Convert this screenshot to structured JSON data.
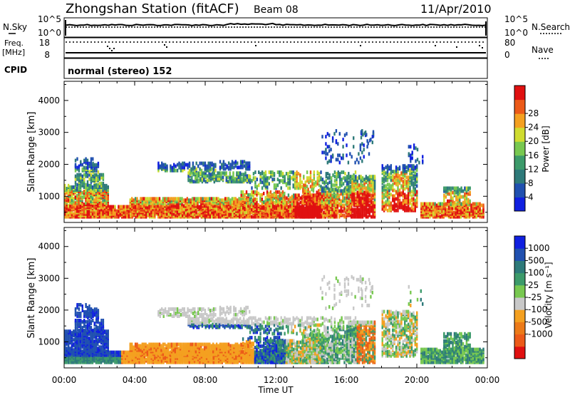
{
  "header": {
    "station": "Zhongshan Station (fitACF)",
    "beam": "Beam 08",
    "date": "11/Apr/2010"
  },
  "ticks": {
    "sky_top": "10^5",
    "sky_bottom": "10^0",
    "freq_top": "18",
    "freq_bottom": "8",
    "nave_top": "80",
    "nave_bottom": "0",
    "noise_right_top": "10^5",
    "noise_right_bottom": "10^0"
  },
  "labels": {
    "nsky": "N.Sky",
    "freq": "Freq.",
    "mhz": "[MHz]",
    "cpid_label": "CPID",
    "nsearch": "N.Search",
    "nave": "Nave",
    "cpid_value": "normal (stereo) 152",
    "slant_range_top": "Slant Range [km]",
    "slant_range_bottom": "Slant Range [km]",
    "power_colorbar": "Power [dB]",
    "velocity_colorbar": "Velocity [m s⁻¹]"
  },
  "colors": {
    "power_scale": [
      "#1020e0",
      "#2050b0",
      "#2e7a7a",
      "#3c9a6a",
      "#78c850",
      "#d0dc30",
      "#f4a020",
      "#ec5a18",
      "#e01010"
    ],
    "velocity_scale": [
      "#1020e0",
      "#2050b0",
      "#2e7a7a",
      "#3c9a6a",
      "#78c850",
      "#c8c8c8",
      "#f4a020",
      "#ec7a18",
      "#ec5a18",
      "#e01010"
    ]
  },
  "chart_data": [
    {
      "type": "line",
      "title": "N.Sky / N.Search",
      "x": [
        "00:00",
        "04:00",
        "08:00",
        "12:00",
        "16:00",
        "20:00",
        "00:00"
      ],
      "series": [
        {
          "name": "N.Sky",
          "values": [
            3000,
            3200,
            3500,
            6000,
            4000,
            3000,
            2500
          ]
        },
        {
          "name": "N.Search",
          "values": [
            2000,
            2200,
            2500,
            3500,
            3000,
            2200,
            2000
          ]
        }
      ],
      "ylim_labels": [
        "10^0",
        "10^5"
      ]
    },
    {
      "type": "line",
      "title": "Freq. / Nave",
      "x": [
        "00:00",
        "04:00",
        "08:00",
        "12:00",
        "16:00",
        "20:00",
        "00:00"
      ],
      "series": [
        {
          "name": "Freq. [MHz]",
          "values": [
            12,
            12,
            12,
            12,
            12,
            12,
            12
          ]
        },
        {
          "name": "Nave",
          "values": [
            76,
            76,
            76,
            76,
            76,
            76,
            76
          ]
        }
      ],
      "ylim_left": [
        8,
        18
      ],
      "ylim_right": [
        0,
        80
      ]
    },
    {
      "type": "heatmap",
      "title": "Power",
      "xlabel": "",
      "ylabel": "Slant Range [km]",
      "x_ticks": [
        "00:00",
        "04:00",
        "08:00",
        "12:00",
        "16:00",
        "20:00",
        "00:00"
      ],
      "y_ticks": [
        "1000",
        "2000",
        "3000",
        "4000"
      ],
      "ylim": [
        180,
        4600
      ],
      "colorbar": {
        "label": "Power [dB]",
        "ticks": [
          "4",
          "8",
          "12",
          "16",
          "20",
          "24",
          "28"
        ]
      }
    },
    {
      "type": "heatmap",
      "title": "Velocity",
      "xlabel": "Time UT",
      "ylabel": "Slant Range [km]",
      "x_ticks": [
        "00:00",
        "04:00",
        "08:00",
        "12:00",
        "16:00",
        "20:00",
        "00:00"
      ],
      "y_ticks": [
        "1000",
        "2000",
        "3000",
        "4000"
      ],
      "ylim": [
        180,
        4600
      ],
      "colorbar": {
        "label": "Velocity [m s⁻¹]",
        "ticks": [
          "1000",
          "500",
          "100",
          "25",
          "-25",
          "-100",
          "-500",
          "-1000"
        ]
      }
    }
  ]
}
